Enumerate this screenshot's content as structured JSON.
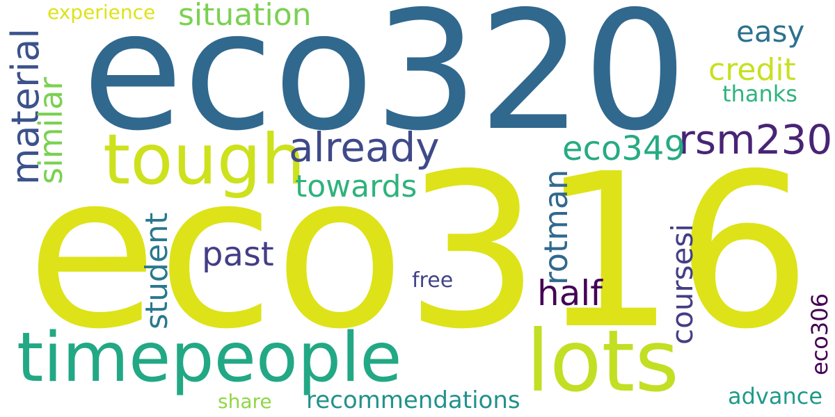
{
  "words": [
    {
      "text": "eco320",
      "color": "#31688e",
      "orientation": "horizontal"
    },
    {
      "text": "eco316",
      "color": "#dde318",
      "orientation": "horizontal"
    },
    {
      "text": "tough",
      "color": "#cde11d",
      "orientation": "horizontal"
    },
    {
      "text": "timepeople",
      "color": "#22a884",
      "orientation": "horizontal"
    },
    {
      "text": "lots",
      "color": "#c2df23",
      "orientation": "horizontal"
    },
    {
      "text": "already",
      "color": "#3e4a89",
      "orientation": "horizontal"
    },
    {
      "text": "rsm230",
      "color": "#482475",
      "orientation": "horizontal"
    },
    {
      "text": "eco349",
      "color": "#25ab82",
      "orientation": "horizontal"
    },
    {
      "text": "towards",
      "color": "#2eb37c",
      "orientation": "horizontal"
    },
    {
      "text": "past",
      "color": "#433e85",
      "orientation": "horizontal"
    },
    {
      "text": "half",
      "color": "#440154",
      "orientation": "horizontal"
    },
    {
      "text": "situation",
      "color": "#7ad151",
      "orientation": "horizontal"
    },
    {
      "text": "easy",
      "color": "#2c728e",
      "orientation": "horizontal"
    },
    {
      "text": "credit",
      "color": "#c8e020",
      "orientation": "horizontal"
    },
    {
      "text": "thanks",
      "color": "#2fb47c",
      "orientation": "horizontal"
    },
    {
      "text": "experience",
      "color": "#dde318",
      "orientation": "horizontal"
    },
    {
      "text": "free",
      "color": "#414487",
      "orientation": "horizontal"
    },
    {
      "text": "share",
      "color": "#8fd744",
      "orientation": "horizontal"
    },
    {
      "text": "recommendations",
      "color": "#21918c",
      "orientation": "horizontal"
    },
    {
      "text": "advance",
      "color": "#1f9a8a",
      "orientation": "horizontal"
    },
    {
      "text": "material",
      "color": "#3b528b",
      "orientation": "vertical"
    },
    {
      "text": "similar",
      "color": "#7ad151",
      "orientation": "vertical"
    },
    {
      "text": "student",
      "color": "#2a788e",
      "orientation": "vertical"
    },
    {
      "text": "rotman",
      "color": "#31688e",
      "orientation": "vertical"
    },
    {
      "text": "coursesi",
      "color": "#433e85",
      "orientation": "vertical"
    },
    {
      "text": "eco306",
      "color": "#440154",
      "orientation": "vertical"
    }
  ]
}
